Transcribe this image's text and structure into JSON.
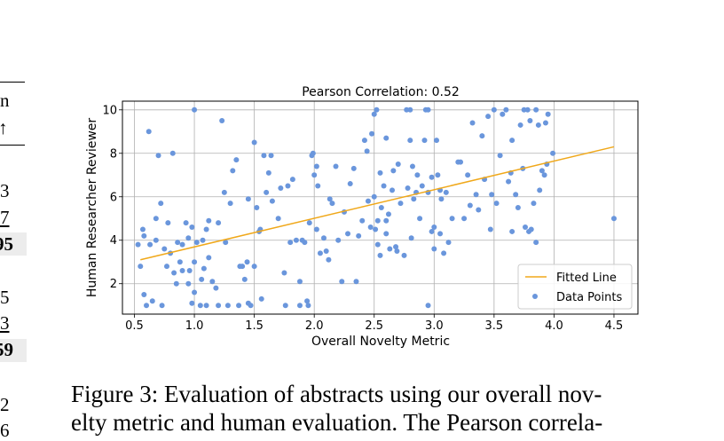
{
  "left_fragment": {
    "header_top": "n",
    "header_arrow": "↑",
    "rows": [
      "3",
      "7",
      "95",
      "5",
      "3",
      "59",
      "2",
      "6"
    ]
  },
  "caption": {
    "line1": "Figure 3: Evaluation of abstracts using our overall nov-",
    "line2": "elty metric and human evaluation. The Pearson correla-"
  },
  "chart_data": {
    "type": "scatter",
    "title": "Pearson Correlation: 0.52",
    "xlabel": "Overall Novelty Metric",
    "ylabel": "Human Researcher Reviewer",
    "xlim": [
      0.4,
      4.7
    ],
    "ylim": [
      0.6,
      10.4
    ],
    "xticks": [
      "0.5",
      "1.0",
      "1.5",
      "2.0",
      "2.5",
      "3.0",
      "3.5",
      "4.0",
      "4.5"
    ],
    "yticks": [
      "2",
      "4",
      "6",
      "8",
      "10"
    ],
    "grid": true,
    "legend_position": "lower-right",
    "colors": {
      "points": "#6a96dc",
      "line": "#f0a81a"
    },
    "series": [
      {
        "name": "Fitted Line",
        "kind": "line",
        "x": [
          0.55,
          4.5
        ],
        "y": [
          3.1,
          8.3
        ]
      },
      {
        "name": "Data Points",
        "kind": "scatter",
        "points": [
          [
            0.53,
            3.8
          ],
          [
            0.55,
            2.8
          ],
          [
            0.57,
            4.5
          ],
          [
            0.58,
            4.2
          ],
          [
            0.58,
            1.5
          ],
          [
            0.6,
            1.0
          ],
          [
            0.62,
            9.0
          ],
          [
            0.63,
            3.8
          ],
          [
            0.65,
            1.2
          ],
          [
            0.68,
            4.0
          ],
          [
            0.7,
            7.9
          ],
          [
            0.72,
            5.7
          ],
          [
            0.73,
            1.0
          ],
          [
            0.75,
            3.6
          ],
          [
            0.77,
            2.8
          ],
          [
            0.78,
            4.8
          ],
          [
            0.8,
            3.4
          ],
          [
            0.82,
            8.0
          ],
          [
            0.83,
            2.5
          ],
          [
            0.85,
            2.0
          ],
          [
            0.86,
            3.9
          ],
          [
            0.88,
            3.0
          ],
          [
            0.9,
            2.6
          ],
          [
            0.9,
            3.8
          ],
          [
            0.93,
            4.8
          ],
          [
            0.95,
            2.0
          ],
          [
            0.96,
            2.6
          ],
          [
            0.98,
            1.1
          ],
          [
            0.98,
            4.6
          ],
          [
            1.0,
            3.0
          ],
          [
            1.0,
            10.0
          ],
          [
            1.0,
            1.6
          ],
          [
            1.02,
            3.9
          ],
          [
            1.05,
            1.0
          ],
          [
            1.06,
            2.2
          ],
          [
            1.07,
            4.0
          ],
          [
            1.08,
            2.7
          ],
          [
            1.1,
            1.0
          ],
          [
            1.12,
            4.9
          ],
          [
            1.15,
            2.1
          ],
          [
            1.18,
            1.8
          ],
          [
            1.2,
            4.8
          ],
          [
            1.2,
            1.0
          ],
          [
            1.23,
            9.5
          ],
          [
            1.25,
            6.2
          ],
          [
            1.26,
            3.9
          ],
          [
            1.28,
            1.0
          ],
          [
            1.32,
            7.2
          ],
          [
            1.35,
            7.7
          ],
          [
            1.37,
            1.0
          ],
          [
            1.38,
            2.8
          ],
          [
            1.4,
            2.8
          ],
          [
            1.42,
            2.2
          ],
          [
            1.44,
            3.0
          ],
          [
            1.45,
            1.1
          ],
          [
            1.47,
            1.0
          ],
          [
            1.5,
            2.8
          ],
          [
            1.5,
            8.5
          ],
          [
            1.52,
            5.5
          ],
          [
            1.54,
            4.4
          ],
          [
            1.56,
            1.3
          ],
          [
            1.58,
            7.9
          ],
          [
            1.6,
            6.2
          ],
          [
            1.62,
            7.1
          ],
          [
            1.64,
            7.9
          ],
          [
            1.65,
            5.8
          ],
          [
            1.72,
            6.4
          ],
          [
            1.75,
            2.5
          ],
          [
            1.76,
            1.0
          ],
          [
            1.78,
            6.5
          ],
          [
            1.8,
            3.9
          ],
          [
            1.82,
            6.8
          ],
          [
            1.85,
            4.0
          ],
          [
            1.88,
            1.0
          ],
          [
            1.9,
            4.0
          ],
          [
            1.92,
            3.9
          ],
          [
            1.94,
            1.2
          ],
          [
            1.95,
            1.0
          ],
          [
            1.96,
            4.8
          ],
          [
            1.98,
            7.9
          ],
          [
            1.99,
            8.0
          ],
          [
            2.0,
            7.0
          ],
          [
            2.02,
            7.4
          ],
          [
            2.02,
            4.5
          ],
          [
            2.03,
            6.5
          ],
          [
            2.05,
            3.4
          ],
          [
            2.08,
            4.1
          ],
          [
            2.1,
            3.5
          ],
          [
            2.12,
            3.1
          ],
          [
            2.13,
            5.9
          ],
          [
            2.18,
            7.4
          ],
          [
            2.23,
            2.1
          ],
          [
            2.25,
            5.3
          ],
          [
            2.3,
            6.6
          ],
          [
            2.33,
            7.3
          ],
          [
            2.35,
            2.1
          ],
          [
            2.37,
            4.2
          ],
          [
            2.4,
            4.9
          ],
          [
            2.42,
            8.6
          ],
          [
            2.45,
            5.8
          ],
          [
            2.47,
            4.6
          ],
          [
            2.48,
            8.9
          ],
          [
            2.5,
            9.8
          ],
          [
            2.5,
            6.0
          ],
          [
            2.51,
            4.5
          ],
          [
            2.52,
            10.0
          ],
          [
            2.53,
            4.9
          ],
          [
            2.55,
            3.3
          ],
          [
            2.55,
            7.1
          ],
          [
            2.56,
            5.5
          ],
          [
            2.58,
            6.5
          ],
          [
            2.6,
            8.7
          ],
          [
            2.6,
            4.3
          ],
          [
            2.62,
            5.2
          ],
          [
            2.63,
            3.6
          ],
          [
            2.65,
            6.3
          ],
          [
            2.66,
            7.2
          ],
          [
            2.68,
            3.7
          ],
          [
            2.7,
            7.5
          ],
          [
            2.72,
            5.7
          ],
          [
            2.75,
            3.3
          ],
          [
            2.77,
            10.0
          ],
          [
            2.78,
            6.4
          ],
          [
            2.8,
            10.0
          ],
          [
            2.8,
            8.6
          ],
          [
            2.81,
            4.1
          ],
          [
            2.82,
            7.4
          ],
          [
            2.83,
            5.9
          ],
          [
            2.85,
            6.2
          ],
          [
            2.88,
            5.0
          ],
          [
            2.9,
            6.5
          ],
          [
            2.92,
            8.6
          ],
          [
            2.93,
            10.0
          ],
          [
            2.95,
            10.0
          ],
          [
            2.95,
            6.2
          ],
          [
            2.95,
            1.0
          ],
          [
            2.98,
            6.9
          ],
          [
            2.98,
            4.4
          ],
          [
            3.0,
            4.6
          ],
          [
            3.0,
            3.6
          ],
          [
            3.02,
            8.6
          ],
          [
            3.03,
            7.0
          ],
          [
            3.05,
            6.3
          ],
          [
            3.05,
            4.3
          ],
          [
            3.08,
            3.4
          ],
          [
            3.1,
            6.2
          ],
          [
            3.12,
            3.9
          ],
          [
            3.15,
            5.0
          ],
          [
            3.2,
            7.6
          ],
          [
            3.22,
            7.6
          ],
          [
            3.25,
            5.0
          ],
          [
            3.3,
            5.6
          ],
          [
            3.32,
            9.4
          ],
          [
            3.35,
            6.1
          ],
          [
            3.37,
            5.4
          ],
          [
            3.4,
            8.8
          ],
          [
            3.42,
            6.8
          ],
          [
            3.45,
            9.7
          ],
          [
            3.47,
            4.5
          ],
          [
            3.5,
            10.0
          ],
          [
            3.52,
            5.7
          ],
          [
            3.55,
            7.9
          ],
          [
            3.57,
            9.8
          ],
          [
            3.6,
            10.0
          ],
          [
            3.62,
            6.7
          ],
          [
            3.65,
            8.6
          ],
          [
            3.65,
            4.4
          ],
          [
            3.68,
            6.1
          ],
          [
            3.7,
            5.5
          ],
          [
            3.72,
            9.3
          ],
          [
            3.75,
            10.0
          ],
          [
            3.76,
            4.6
          ],
          [
            3.78,
            10.0
          ],
          [
            3.79,
            4.4
          ],
          [
            3.8,
            9.5
          ],
          [
            3.81,
            4.5
          ],
          [
            3.83,
            5.7
          ],
          [
            3.85,
            3.9
          ],
          [
            3.85,
            10.0
          ],
          [
            3.87,
            9.3
          ],
          [
            3.9,
            7.2
          ],
          [
            3.92,
            7.0
          ],
          [
            3.93,
            9.4
          ],
          [
            3.95,
            9.8
          ],
          [
            3.99,
            8.0
          ],
          [
            4.5,
            5.0
          ],
          [
            0.95,
            4.1
          ],
          [
            1.1,
            4.5
          ],
          [
            1.3,
            5.7
          ],
          [
            1.55,
            4.5
          ],
          [
            2.15,
            5.7
          ],
          [
            2.28,
            4.3
          ],
          [
            2.44,
            8.1
          ],
          [
            2.6,
            4.9
          ],
          [
            2.69,
            3.5
          ],
          [
            2.86,
            7.0
          ],
          [
            3.06,
            5.9
          ],
          [
            3.28,
            7.0
          ],
          [
            3.48,
            6.1
          ],
          [
            3.64,
            7.1
          ],
          [
            3.74,
            7.3
          ],
          [
            3.88,
            6.3
          ],
          [
            3.94,
            7.5
          ],
          [
            2.53,
            3.8
          ],
          [
            2.2,
            4.0
          ],
          [
            1.7,
            5.0
          ],
          [
            1.45,
            5.9
          ],
          [
            0.68,
            5.0
          ],
          [
            1.12,
            3.2
          ],
          [
            1.88,
            2.1
          ]
        ]
      }
    ]
  }
}
